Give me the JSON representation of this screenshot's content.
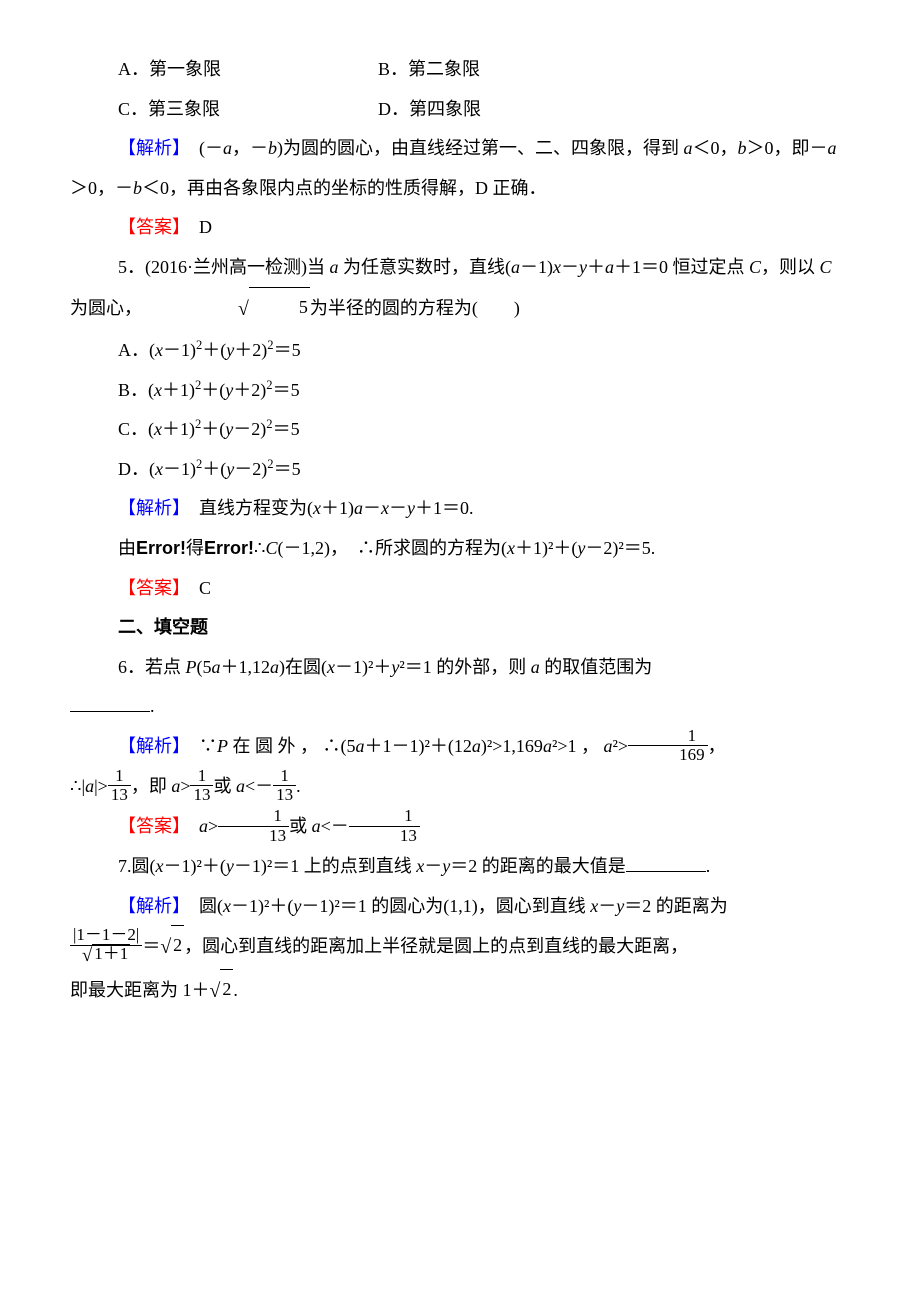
{
  "q4": {
    "optA": "A．第一象限",
    "optB": "B．第二象限",
    "optC": "C．第三象限",
    "optD": "D．第四象限",
    "analysis_label": "【解析】　",
    "analysis_text_before_a": "(－",
    "var_a": "a",
    "analysis_text_mid1": "，－",
    "var_b": "b",
    "analysis_text_mid2": ")为圆的圆心，由直线经过第一、二、四象限，得到 ",
    "analysis_text_lt": "＜0，",
    "analysis_text_gt": "＞0，即－",
    "analysis_text_agt": "＞0，－",
    "analysis_text_blt": "＜0，再由各象限内点的坐标的性质得解，D 正确．",
    "answer_label": "【答案】　",
    "answer_val": "D"
  },
  "q5": {
    "num": "5．(2016·兰州高一检测)当 ",
    "var_a": "a",
    "text1": " 为任意实数时，直线(",
    "eq1": "－1)",
    "var_x": "x",
    "minus": "－",
    "var_y": "y",
    "plus": "＋",
    "text2": "＋1＝0 恒过定点 ",
    "var_c": "C",
    "text3": "，则以 ",
    "text4": " 为圆心，",
    "sqrt5": "5",
    "text5": "为半径的圆的方程为(　　)",
    "optA": "A．(x－1)²＋(y＋2)²＝5",
    "optB": "B．(x＋1)²＋(y＋2)²＝5",
    "optC": "C．(x＋1)²＋(y－2)²＝5",
    "optD": "D．(x－1)²＋(y－2)²＝5",
    "analysis_label": "【解析】　",
    "analysis_text": "直线方程变为(",
    "analysis_text2": "＋1)",
    "analysis_text3": "＋1＝0.",
    "by": "由",
    "error": "Error!",
    "get": "得",
    "therefore": "∴",
    "cpoint": "(－1,2)，　∴所求圆的方程为(",
    "finaleq": "＋1)²＋(",
    "finaleq2": "－2)²＝5.",
    "answer_label": "【答案】　",
    "answer_val": "C"
  },
  "section2": "二、填空题",
  "q6": {
    "num": "6．若点 ",
    "var_p": "P",
    "ppoint1": "(5",
    "var_a": "a",
    "ppoint2": "＋1,12",
    "ppoint3": ")在圆(",
    "var_x": "x",
    "eq1": "－1)²＋",
    "var_y": "y",
    "eq2": "²＝1 的外部，则 ",
    "text_end": " 的取值范围为",
    "analysis_label": "【解析】　",
    "because": "∵",
    "ptext": " 在 圆 外 ， ∴(5",
    "ana1": "＋1－1)²＋(12",
    "ana2": ")²>1,169",
    "ana3": "²>1 ， ",
    "asq_gt": "²>",
    "frac1n": "1",
    "frac1d": "169",
    "comma": "，",
    "therefore": "∴|",
    "abs_gt": "|>",
    "frac2n": "1",
    "frac2d": "13",
    "ie": "，即 ",
    "gt": ">",
    "or": "或 ",
    "lt": "<－",
    "period": ".",
    "answer_label": "【答案】　"
  },
  "q7": {
    "num": "7.圆(",
    "var_x": "x",
    "eq1": "－1)²＋(",
    "var_y": "y",
    "eq2": "－1)²＝1 上的点到直线 ",
    "eq3": "＝2 的距离的最大值是",
    "analysis_label": "【解析】　",
    "ana1": "圆(",
    "ana2": "－1)²＝1 的圆心为(1,1)，圆心到直线 ",
    "ana3": "＝2 的距离为",
    "fracn": "|1－1－2|",
    "fracd_sqrt": "1＋1",
    "equals": "＝",
    "sqrt2": "2",
    "ana4": "，圆心到直线的距离加上半径就是圆上的点到直线的最大距离，",
    "ana5": "即最大距离为 1＋",
    "period": "."
  }
}
